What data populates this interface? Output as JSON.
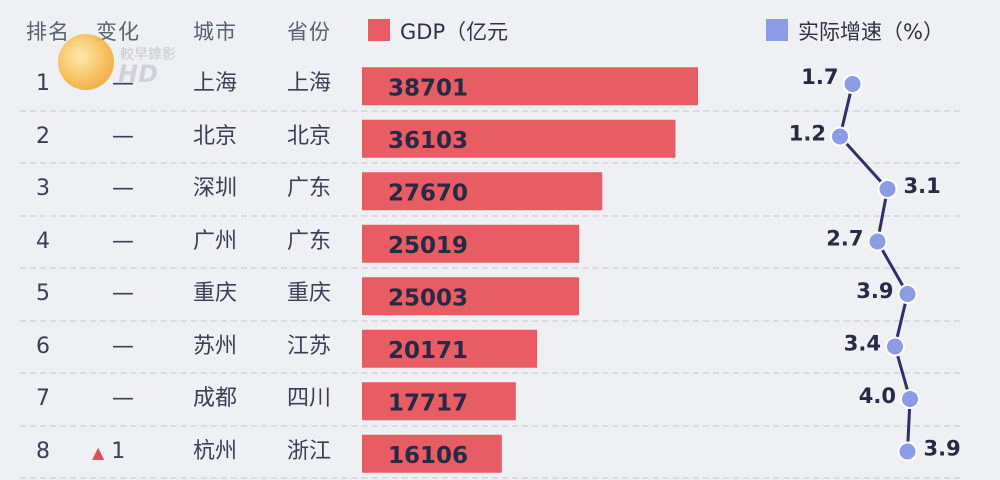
{
  "header": {
    "rank": "排名",
    "change": "变化",
    "city": "城市",
    "province": "省份",
    "gdp_legend": "GDP（亿元",
    "growth_legend": "实际增速（%）"
  },
  "watermark": {
    "channel": "較早鎿影",
    "hd": "HD"
  },
  "colors": {
    "gdp_bar": "#e85c64",
    "growth_line": "#2e2f6b",
    "growth_point": "#8c9be6"
  },
  "chart_data": {
    "type": "bar",
    "series": [
      {
        "name": "GDP（亿元",
        "values": [
          38701,
          36103,
          27670,
          25019,
          25003,
          20171,
          17717,
          16106
        ]
      },
      {
        "name": "实际增速（%）",
        "values": [
          1.7,
          1.2,
          3.1,
          2.7,
          3.9,
          3.4,
          4.0,
          3.9
        ]
      }
    ],
    "categories": [
      "上海",
      "北京",
      "深圳",
      "广州",
      "重庆",
      "苏州",
      "成都",
      "杭州"
    ],
    "rows": [
      {
        "rank": "1",
        "change": "—",
        "city": "上海",
        "province": "上海",
        "gdp": "38701",
        "growth": "1.7"
      },
      {
        "rank": "2",
        "change": "—",
        "city": "北京",
        "province": "北京",
        "gdp": "36103",
        "growth": "1.2"
      },
      {
        "rank": "3",
        "change": "—",
        "city": "深圳",
        "province": "广东",
        "gdp": "27670",
        "growth": "3.1"
      },
      {
        "rank": "4",
        "change": "—",
        "city": "广州",
        "province": "广东",
        "gdp": "25019",
        "growth": "2.7"
      },
      {
        "rank": "5",
        "change": "—",
        "city": "重庆",
        "province": "重庆",
        "gdp": "25003",
        "growth": "3.9"
      },
      {
        "rank": "6",
        "change": "—",
        "city": "苏州",
        "province": "江苏",
        "gdp": "20171",
        "growth": "3.4"
      },
      {
        "rank": "7",
        "change": "—",
        "city": "成都",
        "province": "四川",
        "gdp": "17717",
        "growth": "4.0"
      },
      {
        "rank": "8",
        "change": "▲1",
        "city": "杭州",
        "province": "浙江",
        "gdp": "16106",
        "growth": "3.9"
      }
    ],
    "ylim_gdp": [
      0,
      45000
    ],
    "ylim_growth": [
      0,
      5
    ]
  }
}
